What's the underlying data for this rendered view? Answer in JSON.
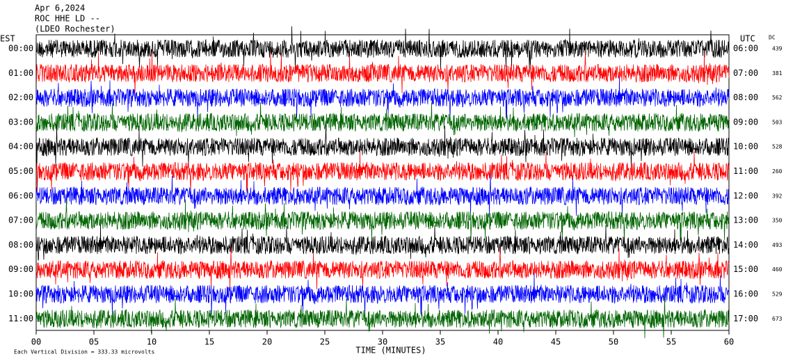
{
  "header": {
    "lines": [
      "Apr 6,2024",
      "ROC HHE LD --",
      "(LDEO Rochester)"
    ]
  },
  "left_axis": {
    "title": "EST",
    "labels": [
      "00:00",
      "01:00",
      "02:00",
      "03:00",
      "04:00",
      "05:00",
      "06:00",
      "07:00",
      "08:00",
      "09:00",
      "10:00",
      "11:00"
    ]
  },
  "right_axis": {
    "title": "UTC",
    "labels": [
      "06:00",
      "07:00",
      "08:00",
      "09:00",
      "10:00",
      "11:00",
      "12:00",
      "13:00",
      "14:00",
      "15:00",
      "16:00",
      "17:00"
    ]
  },
  "dc": {
    "title": "DC",
    "values": [
      "439",
      "381",
      "562",
      "503",
      "528",
      "260",
      "392",
      "350",
      "493",
      "460",
      "529",
      "673"
    ]
  },
  "x_axis": {
    "title": "TIME (MINUTES)",
    "ticks": [
      "00",
      "05",
      "10",
      "15",
      "20",
      "25",
      "30",
      "35",
      "40",
      "45",
      "50",
      "55",
      "60"
    ]
  },
  "footnote": "Each Vertical Division =  333.33 microvolts",
  "trace_colors": [
    "#000000",
    "#ff0000",
    "#0000ff",
    "#006400"
  ]
}
